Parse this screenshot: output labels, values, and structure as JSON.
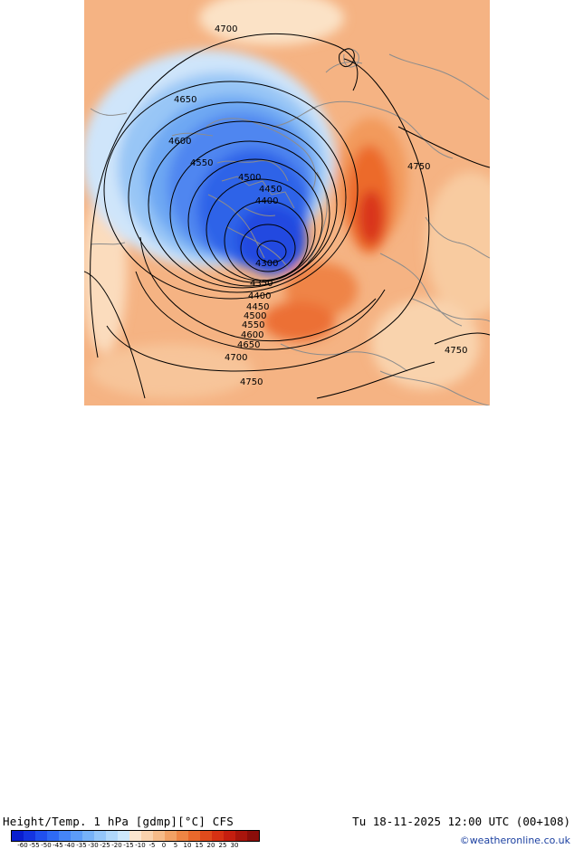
{
  "title": "Height/Temp. 1 hPa [gdmp][°C] CFS",
  "datetime": "Tu 18-11-2025 12:00 UTC (00+108)",
  "credit": "©weatheronline.co.uk",
  "contour_labels": [
    "4700",
    "4650",
    "4600",
    "4550",
    "4500",
    "4450",
    "4400",
    "4300",
    "4350",
    "4400",
    "4450",
    "4500",
    "4550",
    "4600",
    "4650",
    "4700",
    "4750",
    "4750",
    "4750"
  ],
  "colorbar": {
    "colors": [
      "#0a1ecf",
      "#1434e0",
      "#2050ee",
      "#2e6af4",
      "#4585f6",
      "#5c9cf7",
      "#76b2f8",
      "#93c6fa",
      "#b0d8fb",
      "#cde8fc",
      "#fbe6cf",
      "#f9d2ad",
      "#f6bb88",
      "#f2a164",
      "#ee8544",
      "#e9682b",
      "#e04b1c",
      "#d63113",
      "#c51e0f",
      "#a8150c",
      "#8a0e0a"
    ],
    "tick_labels": [
      "-60",
      "-55",
      "-50",
      "-45",
      "-40",
      "-35",
      "-30",
      "-25",
      "-20",
      "-15",
      "-10",
      "-5",
      "0",
      "5",
      "10",
      "15",
      "20",
      "25",
      "30"
    ]
  },
  "field_colors": {
    "warm_background": "#f5b383",
    "very_cold": "#2048e0",
    "cold": "#4f86f0",
    "cool": "#98c6f6",
    "hot": "#ec6a2a",
    "coast": "#8c8c8c"
  }
}
